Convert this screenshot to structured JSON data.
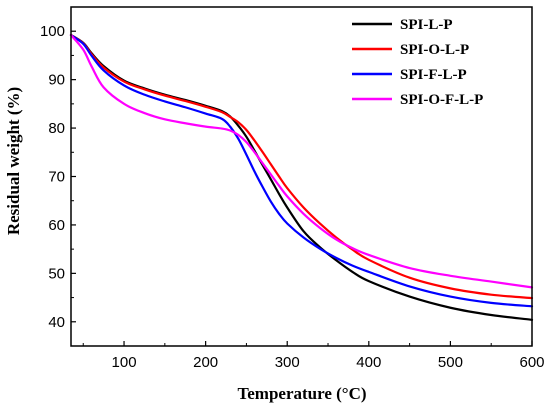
{
  "chart_data": {
    "type": "line",
    "xlabel": "Temperature (°C)",
    "ylabel": "Residual weight (%)",
    "xlim": [
      35,
      600
    ],
    "ylim": [
      35,
      105
    ],
    "xticks": [
      100,
      200,
      300,
      400,
      500,
      600
    ],
    "yticks": [
      40,
      50,
      60,
      70,
      80,
      90,
      100
    ],
    "grid": false,
    "legend_position": "top-right",
    "series": [
      {
        "name": "SPI-L-P",
        "color": "#000000",
        "x": [
          35,
          50,
          60,
          75,
          100,
          125,
          150,
          175,
          200,
          220,
          230,
          240,
          250,
          260,
          270,
          280,
          290,
          300,
          320,
          340,
          360,
          380,
          400,
          450,
          500,
          550,
          600
        ],
        "y": [
          99.2,
          97.6,
          95.5,
          92.8,
          89.8,
          88.2,
          86.9,
          85.8,
          84.6,
          83.5,
          82.4,
          80.5,
          78.2,
          75.3,
          72.3,
          69.4,
          66.4,
          63.6,
          58.7,
          55.4,
          52.7,
          50.3,
          48.4,
          45.2,
          42.9,
          41.4,
          40.4
        ]
      },
      {
        "name": "SPI-O-L-P",
        "color": "#ff0000",
        "x": [
          35,
          50,
          60,
          75,
          100,
          125,
          150,
          175,
          200,
          220,
          230,
          240,
          250,
          260,
          270,
          280,
          290,
          300,
          320,
          340,
          360,
          380,
          400,
          450,
          500,
          550,
          600
        ],
        "y": [
          99.2,
          97.5,
          95.3,
          92.5,
          89.6,
          88.0,
          86.7,
          85.6,
          84.4,
          83.3,
          82.3,
          81.2,
          79.6,
          77.4,
          75.0,
          72.5,
          70.0,
          67.6,
          63.6,
          60.3,
          57.4,
          54.9,
          52.8,
          49.1,
          46.9,
          45.6,
          44.9
        ]
      },
      {
        "name": "SPI-F-L-P",
        "color": "#0000ff",
        "x": [
          35,
          50,
          60,
          75,
          100,
          125,
          150,
          175,
          200,
          220,
          230,
          240,
          250,
          260,
          270,
          280,
          290,
          300,
          320,
          340,
          360,
          380,
          400,
          450,
          500,
          550,
          600
        ],
        "y": [
          99.2,
          97.4,
          95.0,
          91.9,
          88.8,
          86.9,
          85.5,
          84.3,
          83.0,
          81.9,
          80.3,
          77.8,
          74.5,
          71.0,
          67.8,
          64.8,
          62.3,
          60.3,
          57.4,
          55.1,
          53.2,
          51.6,
          50.3,
          47.3,
          45.2,
          43.9,
          43.2
        ]
      },
      {
        "name": "SPI-O-F-L-P",
        "color": "#ff00ff",
        "x": [
          35,
          50,
          60,
          75,
          100,
          125,
          150,
          175,
          200,
          220,
          230,
          240,
          250,
          260,
          270,
          280,
          290,
          300,
          320,
          340,
          360,
          380,
          400,
          450,
          500,
          550,
          600
        ],
        "y": [
          99.2,
          96.2,
          92.8,
          88.4,
          85.0,
          83.1,
          81.8,
          81.0,
          80.3,
          79.9,
          79.5,
          78.6,
          77.1,
          75.0,
          72.7,
          70.4,
          68.1,
          65.9,
          62.3,
          59.4,
          57.0,
          55.2,
          53.8,
          51.1,
          49.5,
          48.3,
          47.1
        ]
      }
    ]
  }
}
